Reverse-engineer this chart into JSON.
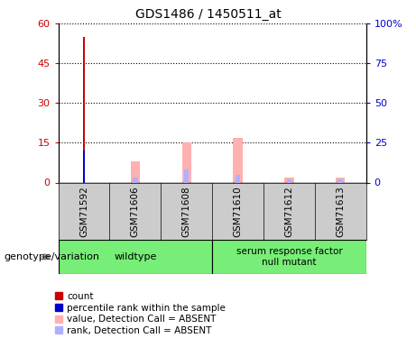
{
  "title": "GDS1486 / 1450511_at",
  "samples": [
    "GSM71592",
    "GSM71606",
    "GSM71608",
    "GSM71610",
    "GSM71612",
    "GSM71613"
  ],
  "count_values": [
    55,
    0,
    0,
    0,
    0,
    0
  ],
  "percentile_rank_values": [
    20,
    0,
    0,
    0,
    0,
    0
  ],
  "absent_value_values": [
    0,
    8,
    15,
    17,
    2,
    2
  ],
  "absent_rank_values": [
    0,
    3,
    8,
    5,
    2,
    2
  ],
  "ylim_left": [
    0,
    60
  ],
  "ylim_right": [
    0,
    100
  ],
  "yticks_left": [
    0,
    15,
    30,
    45,
    60
  ],
  "yticks_right": [
    0,
    25,
    50,
    75,
    100
  ],
  "ytick_labels_right": [
    "0",
    "25",
    "50",
    "75",
    "100%"
  ],
  "color_count": "#cc0000",
  "color_percentile": "#0000cc",
  "color_absent_value": "#ffb0b0",
  "color_absent_rank": "#b0b0ff",
  "legend_labels": [
    "count",
    "percentile rank within the sample",
    "value, Detection Call = ABSENT",
    "rank, Detection Call = ABSENT"
  ],
  "legend_colors": [
    "#cc0000",
    "#0000cc",
    "#ffb0b0",
    "#b0b0ff"
  ],
  "background_color": "#ffffff",
  "sample_bg_color": "#cccccc",
  "group_bg_color": "#77ee77",
  "genotype_label": "genotype/variation",
  "wildtype_label": "wildtype",
  "mutant_label": "serum response factor\nnull mutant"
}
